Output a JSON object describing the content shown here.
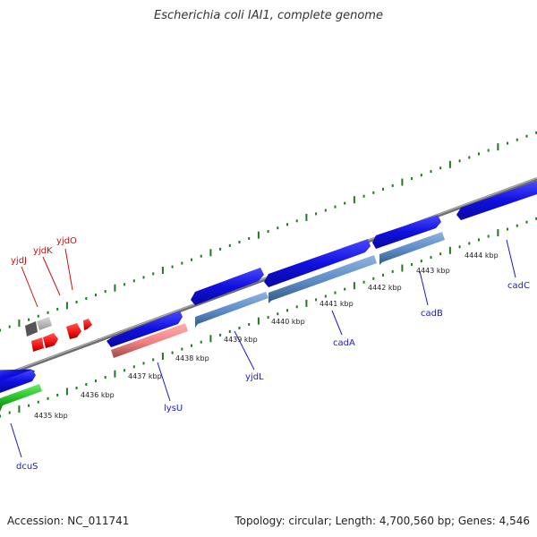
{
  "title": "Escherichia coli IAI1, complete genome",
  "accession_text": "Accession: NC_011741",
  "topology_text": "Topology: circular; Length: 4,700,560 bp; Genes: 4,546",
  "colors": {
    "backbone": "#8c8c8c",
    "tick": "#1f7a1f",
    "forward_gene": "#1a1ae6",
    "reverse_gene": "#5a8ac6",
    "trna": "#f08080",
    "green_gene": "#22bb22",
    "red_gene": "#ee1111",
    "forward_label": "#1a1acc",
    "red_label": "#cc1111"
  },
  "scale_labels": [
    "4435 kbp",
    "4436 kbp",
    "4437 kbp",
    "4438 kbp",
    "4439 kbp",
    "4440 kbp",
    "4441 kbp",
    "4442 kbp",
    "4443 kbp",
    "4444 kbp"
  ],
  "gene_labels": [
    {
      "name": "dcuS",
      "color": "forward_label"
    },
    {
      "name": "lysU",
      "color": "forward_label"
    },
    {
      "name": "yjdL",
      "color": "forward_label"
    },
    {
      "name": "cadA",
      "color": "forward_label"
    },
    {
      "name": "cadB",
      "color": "forward_label"
    },
    {
      "name": "cadC",
      "color": "forward_label"
    },
    {
      "name": "yjdJ",
      "color": "red_label"
    },
    {
      "name": "yjdK",
      "color": "red_label"
    },
    {
      "name": "yjdO",
      "color": "red_label"
    }
  ]
}
